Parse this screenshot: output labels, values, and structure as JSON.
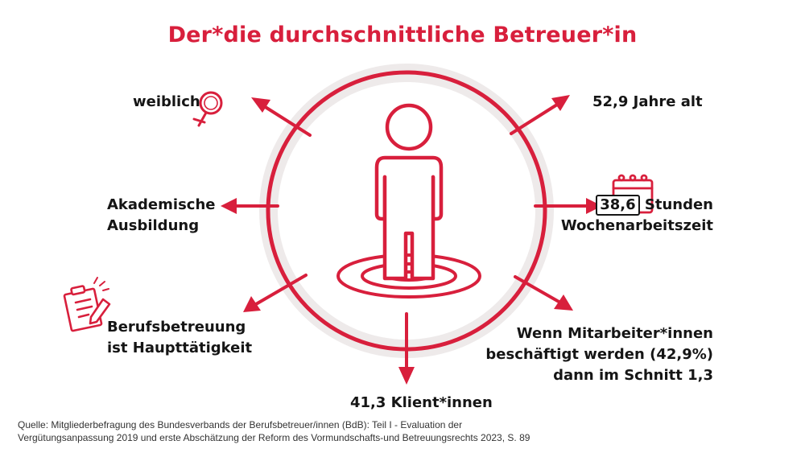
{
  "title": "Der*die durchschnittliche Betreuer*in",
  "items": {
    "gender": "weiblich",
    "age": "52,9 Jahre alt",
    "education_line1": "Akademische",
    "education_line2": "Ausbildung",
    "hours_number": "38,6",
    "hours_unit": "Stunden",
    "hours_line2": "Wochenarbeitszeit",
    "profession_line1": "Berufsbetreuung",
    "profession_line2": "ist Haupttätigkeit",
    "employees_line1": "Wenn Mitarbeiter*innen",
    "employees_line2": "beschäftigt werden (42,9%)",
    "employees_line3": "dann im Schnitt 1,3",
    "clients": "41,3 Klient*innen"
  },
  "source_line1": "Quelle: Mitgliederbefragung des Bundesverbands der Berufsbetreuer/innen (BdB): Teil I - Evaluation der",
  "source_line2": "Vergütungsanpassung 2019 und erste Abschätzung der Reform des Vormundschafts-und Betreuungsrechts 2023, S. 89",
  "colors": {
    "accent": "#d81f3c",
    "ring_bg": "#eeeaea",
    "text": "#151515"
  },
  "icons": [
    "female-symbol-icon",
    "calendar-icon",
    "clipboard-pencil-icon",
    "person-icon"
  ]
}
